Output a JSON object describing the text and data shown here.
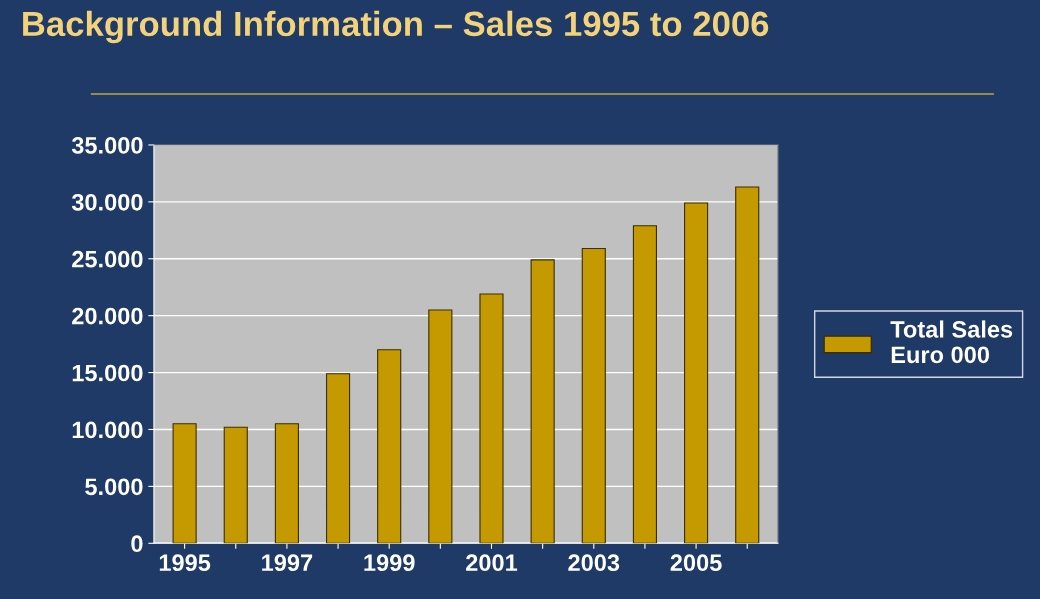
{
  "chart_data": {
    "type": "bar",
    "title": "Background Information – Sales 1995 to 2006",
    "categories": [
      "1995",
      null,
      "1997",
      null,
      "1999",
      null,
      "2001",
      null,
      "2003",
      null,
      "2005",
      null
    ],
    "series": [
      {
        "name": "Total Sales\nEuro 000",
        "color": "#c49a00",
        "values": [
          10500,
          10200,
          10500,
          14900,
          17000,
          20500,
          21900,
          24900,
          25900,
          27900,
          29900,
          31300
        ]
      }
    ],
    "ylim": [
      0,
      35000
    ],
    "yticks": [
      {
        "value": 0,
        "label": "0"
      },
      {
        "value": 5000,
        "label": "5.000"
      },
      {
        "value": 10000,
        "label": "10.000"
      },
      {
        "value": 15000,
        "label": "15.000"
      },
      {
        "value": 20000,
        "label": "20.000"
      },
      {
        "value": 25000,
        "label": "25.000"
      },
      {
        "value": 30000,
        "label": "30.000"
      },
      {
        "value": 35000,
        "label": "35.000"
      }
    ],
    "grid": "y",
    "legend": "right"
  }
}
